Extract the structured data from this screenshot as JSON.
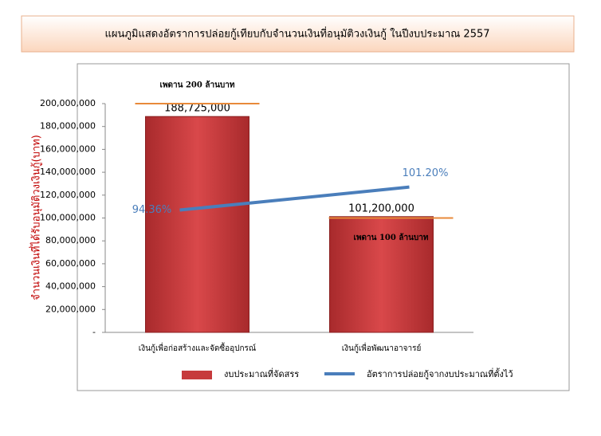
{
  "chart_data": {
    "type": "bar",
    "title": "แผนภูมิแสดงอัตราการปล่อยกู้เทียบกับจำนวนเงินที่อนุมัติวงเงินกู้ ในปีงบประมาณ 2557",
    "ylabel": "จำนวนเงินที่ได้รับอนุมัติวงเงินกู้(บาท)",
    "categories": [
      "เงินกู้เพื่อก่อสร้างและจัดซื้ออุปกรณ์",
      "เงินกู้เพื่อพัฒนาอาจารย์"
    ],
    "series": [
      {
        "name": "งบประมาณที่จัดสรร",
        "color": "#c63a3c",
        "values": [
          188725000,
          101200000
        ],
        "value_labels": [
          "188,725,000",
          "101,200,000"
        ]
      },
      {
        "name": "อัตราการปล่อยกู้จากงบประมาณที่ตั้งไว้",
        "type": "line",
        "axis": "y2",
        "color": "#4a7ebb",
        "values": [
          94.36,
          101.2
        ],
        "value_labels": [
          "94.36%",
          "101.20%"
        ]
      }
    ],
    "annotations": [
      {
        "text": "เพดาน 200 ล้านบาท",
        "value": 200000000,
        "color": "#e88a3a"
      },
      {
        "text": "เพดาน 100 ล้านบาท",
        "value": 100000000,
        "color": "#e88a3a"
      }
    ],
    "ylim": [
      0,
      200000000
    ],
    "yticks": [
      {
        "value": 0,
        "label": "-"
      },
      {
        "value": 20000000,
        "label": "20,000,000"
      },
      {
        "value": 40000000,
        "label": "40,000,000"
      },
      {
        "value": 60000000,
        "label": "60,000,000"
      },
      {
        "value": 80000000,
        "label": "80,000,000"
      },
      {
        "value": 100000000,
        "label": "100,000,000"
      },
      {
        "value": 120000000,
        "label": "120,000,000"
      },
      {
        "value": 140000000,
        "label": "140,000,000"
      },
      {
        "value": 160000000,
        "label": "160,000,000"
      },
      {
        "value": 180000000,
        "label": "180,000,000"
      },
      {
        "value": 200000000,
        "label": "200,000,000"
      }
    ],
    "y2lim": [
      58,
      126
    ]
  }
}
